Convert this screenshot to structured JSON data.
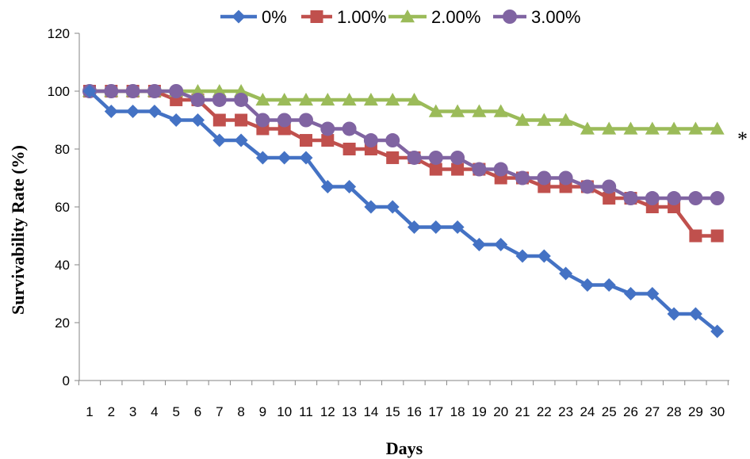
{
  "chart_data": {
    "type": "line",
    "title": "",
    "xlabel": "Days",
    "ylabel": "Survivability Rate (%)",
    "ylim": [
      0,
      120
    ],
    "yticks": [
      0,
      20,
      40,
      60,
      80,
      100,
      120
    ],
    "x": [
      1,
      2,
      3,
      4,
      5,
      6,
      7,
      8,
      9,
      10,
      11,
      12,
      13,
      14,
      15,
      16,
      17,
      18,
      19,
      20,
      21,
      22,
      23,
      24,
      25,
      26,
      27,
      28,
      29,
      30
    ],
    "grid": false,
    "legend_position": "top",
    "annotation": "*",
    "series": [
      {
        "name": "0%",
        "color": "#4472c4",
        "marker": "diamond",
        "values": [
          100,
          93,
          93,
          93,
          90,
          90,
          83,
          83,
          77,
          77,
          77,
          67,
          67,
          60,
          60,
          53,
          53,
          53,
          47,
          47,
          43,
          43,
          37,
          33,
          33,
          30,
          30,
          23,
          23,
          17
        ]
      },
      {
        "name": "1.00%",
        "color": "#c0504d",
        "marker": "square",
        "values": [
          100,
          100,
          100,
          100,
          97,
          97,
          90,
          90,
          87,
          87,
          83,
          83,
          80,
          80,
          77,
          77,
          73,
          73,
          73,
          70,
          70,
          67,
          67,
          67,
          63,
          63,
          60,
          60,
          50,
          50
        ]
      },
      {
        "name": "2.00%",
        "color": "#9bbb59",
        "marker": "triangle",
        "values": [
          100,
          100,
          100,
          100,
          100,
          100,
          100,
          100,
          97,
          97,
          97,
          97,
          97,
          97,
          97,
          97,
          93,
          93,
          93,
          93,
          90,
          90,
          90,
          87,
          87,
          87,
          87,
          87,
          87,
          87
        ]
      },
      {
        "name": "3.00%",
        "color": "#8064a2",
        "marker": "circle",
        "values": [
          100,
          100,
          100,
          100,
          100,
          97,
          97,
          97,
          90,
          90,
          90,
          87,
          87,
          83,
          83,
          77,
          77,
          77,
          73,
          73,
          70,
          70,
          70,
          67,
          67,
          63,
          63,
          63,
          63,
          63
        ]
      }
    ]
  }
}
